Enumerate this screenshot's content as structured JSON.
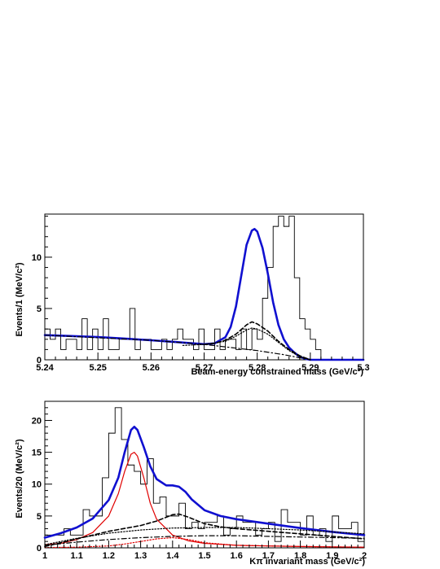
{
  "chart_data": [
    {
      "type": "line",
      "panel": "top",
      "xlabel": "Beam-energy constrained mass (GeV/c²)",
      "ylabel": "Events/1 (MeV/c²)",
      "xlim": [
        5.24,
        5.3
      ],
      "ylim": [
        0,
        14.2
      ],
      "x_ticks": [
        5.24,
        5.25,
        5.26,
        5.27,
        5.28,
        5.29,
        5.3
      ],
      "x_tick_labels": [
        "5.24",
        "5.25",
        "5.26",
        "5.27",
        "5.28",
        "5.29",
        "5.3"
      ],
      "y_ticks": [
        0,
        5,
        10
      ],
      "y_tick_labels": [
        "0",
        "5",
        "10"
      ],
      "bin_width": 0.001,
      "histogram": {
        "x_start": 5.24,
        "counts": [
          3,
          2,
          3,
          1,
          2,
          2,
          1,
          4,
          1,
          3,
          1,
          4,
          1,
          1,
          2,
          2,
          5,
          1,
          2,
          2,
          1,
          1,
          2,
          1,
          2,
          3,
          2,
          2,
          1,
          3,
          1,
          1,
          3,
          1,
          2,
          2,
          1,
          3,
          1,
          3,
          2,
          6,
          9,
          13,
          14,
          13,
          14,
          8,
          4,
          3,
          2,
          1,
          0,
          0,
          0,
          0,
          0,
          0,
          0,
          0
        ]
      },
      "fit_curves": [
        {
          "style": "solid-blue",
          "x": [
            5.24,
            5.245,
            5.25,
            5.255,
            5.26,
            5.265,
            5.27,
            5.272,
            5.274,
            5.275,
            5.276,
            5.277,
            5.278,
            5.279,
            5.2795,
            5.28,
            5.281,
            5.282,
            5.283,
            5.284,
            5.285,
            5.286,
            5.287,
            5.288,
            5.289,
            5.29,
            5.295,
            5.3
          ],
          "y": [
            2.4,
            2.32,
            2.21,
            2.07,
            1.9,
            1.72,
            1.52,
            1.6,
            2.2,
            3.2,
            5.2,
            8.2,
            11.2,
            12.6,
            12.75,
            12.5,
            10.9,
            8.4,
            5.6,
            3.4,
            2.0,
            1.2,
            0.7,
            0.3,
            0.1,
            0.0,
            0.0,
            0.0
          ]
        },
        {
          "style": "dashed-black",
          "x": [
            5.27,
            5.272,
            5.274,
            5.276,
            5.278,
            5.279,
            5.28,
            5.282,
            5.284,
            5.286,
            5.288,
            5.29
          ],
          "y": [
            1.5,
            1.6,
            1.9,
            2.5,
            3.4,
            3.7,
            3.5,
            2.8,
            1.8,
            1.0,
            0.4,
            0.0
          ]
        },
        {
          "style": "dotted-black",
          "x": [
            5.266,
            5.27,
            5.274,
            5.276,
            5.278,
            5.279,
            5.28,
            5.282,
            5.284,
            5.286,
            5.288,
            5.29
          ],
          "y": [
            1.4,
            1.5,
            1.8,
            2.3,
            2.9,
            3.1,
            3.0,
            2.5,
            1.7,
            0.9,
            0.3,
            0.0
          ]
        },
        {
          "style": "dashdot-black",
          "x": [
            5.24,
            5.25,
            5.26,
            5.27,
            5.275,
            5.28,
            5.285,
            5.288,
            5.29
          ],
          "y": [
            2.4,
            2.15,
            1.9,
            1.5,
            1.2,
            0.9,
            0.5,
            0.2,
            0.0
          ]
        }
      ]
    },
    {
      "type": "line",
      "panel": "bottom",
      "xlabel": "Kπ invariant mass (GeV/c²)",
      "ylabel": "Events/20 (MeV/c²)",
      "xlim": [
        1.0,
        2.0
      ],
      "ylim": [
        0,
        23
      ],
      "x_ticks": [
        1,
        1.1,
        1.2,
        1.3,
        1.4,
        1.5,
        1.6,
        1.7,
        1.8,
        1.9,
        2
      ],
      "x_tick_labels": [
        "1",
        "1.1",
        "1.2",
        "1.3",
        "1.4",
        "1.5",
        "1.6",
        "1.7",
        "1.8",
        "1.9",
        "2"
      ],
      "y_ticks": [
        0,
        5,
        10,
        15,
        20
      ],
      "y_tick_labels": [
        "0",
        "5",
        "10",
        "15",
        "20"
      ],
      "bin_width": 0.02,
      "histogram": {
        "x_start": 1.0,
        "counts": [
          2,
          2,
          2,
          3,
          2,
          2,
          6,
          5,
          5,
          11,
          18,
          22,
          17,
          13,
          12,
          10,
          14,
          7,
          8,
          5,
          5,
          7,
          3,
          4,
          3,
          4,
          4,
          5,
          2,
          3,
          5,
          4,
          4,
          2,
          3,
          4,
          1,
          6,
          4,
          4,
          2,
          5,
          2,
          3,
          1,
          5,
          3,
          3,
          4,
          1
        ]
      },
      "fit_curves": [
        {
          "style": "solid-blue",
          "x": [
            1.0,
            1.05,
            1.1,
            1.15,
            1.2,
            1.23,
            1.25,
            1.27,
            1.28,
            1.29,
            1.31,
            1.33,
            1.35,
            1.38,
            1.4,
            1.42,
            1.44,
            1.46,
            1.5,
            1.55,
            1.6,
            1.7,
            1.8,
            1.9,
            2.0
          ],
          "y": [
            1.6,
            2.3,
            3.2,
            4.6,
            7.5,
            11.0,
            15.0,
            18.5,
            19.0,
            18.5,
            15.8,
            12.8,
            10.8,
            9.8,
            9.8,
            9.6,
            8.8,
            7.6,
            5.9,
            5.0,
            4.5,
            3.8,
            3.1,
            2.5,
            2.0
          ]
        },
        {
          "style": "solid-red",
          "x": [
            1.0,
            1.05,
            1.1,
            1.15,
            1.2,
            1.23,
            1.25,
            1.27,
            1.28,
            1.29,
            1.31,
            1.33,
            1.35,
            1.4,
            1.45,
            1.5,
            1.6,
            1.7,
            1.8,
            1.9,
            2.0
          ],
          "y": [
            0.5,
            0.7,
            1.3,
            2.4,
            5.0,
            8.5,
            12.0,
            14.7,
            15.0,
            14.4,
            11.0,
            7.0,
            4.5,
            2.0,
            1.1,
            0.7,
            0.4,
            0.3,
            0.2,
            0.15,
            0.1
          ]
        },
        {
          "style": "dashed-black",
          "x": [
            1.0,
            1.1,
            1.2,
            1.3,
            1.35,
            1.4,
            1.42,
            1.45,
            1.5,
            1.55,
            1.6,
            1.7,
            1.8,
            1.9,
            2.0
          ],
          "y": [
            0.2,
            1.4,
            2.6,
            3.5,
            4.2,
            5.2,
            5.3,
            4.8,
            3.8,
            3.3,
            3.0,
            2.6,
            2.2,
            1.8,
            1.4
          ]
        },
        {
          "style": "dotted-black",
          "x": [
            1.0,
            1.1,
            1.2,
            1.3,
            1.4,
            1.5,
            1.6,
            1.7,
            1.8,
            1.9,
            2.0
          ],
          "y": [
            0.5,
            1.5,
            2.3,
            2.8,
            3.1,
            3.2,
            3.2,
            3.0,
            2.8,
            2.5,
            2.2
          ]
        },
        {
          "style": "dashdot-black",
          "x": [
            1.0,
            1.1,
            1.2,
            1.3,
            1.4,
            1.5,
            1.6,
            1.7,
            1.8,
            1.9,
            2.0
          ],
          "y": [
            0.4,
            0.9,
            1.3,
            1.6,
            1.8,
            1.9,
            1.9,
            1.8,
            1.7,
            1.6,
            1.5
          ]
        },
        {
          "style": "dotted-red",
          "x": [
            1.0,
            1.1,
            1.2,
            1.25,
            1.3,
            1.35,
            1.4,
            1.45,
            1.5,
            1.6,
            1.8,
            2.0
          ],
          "y": [
            0.05,
            0.1,
            0.3,
            0.6,
            1.0,
            1.4,
            1.6,
            1.3,
            0.8,
            0.4,
            0.2,
            0.1
          ]
        }
      ]
    }
  ]
}
